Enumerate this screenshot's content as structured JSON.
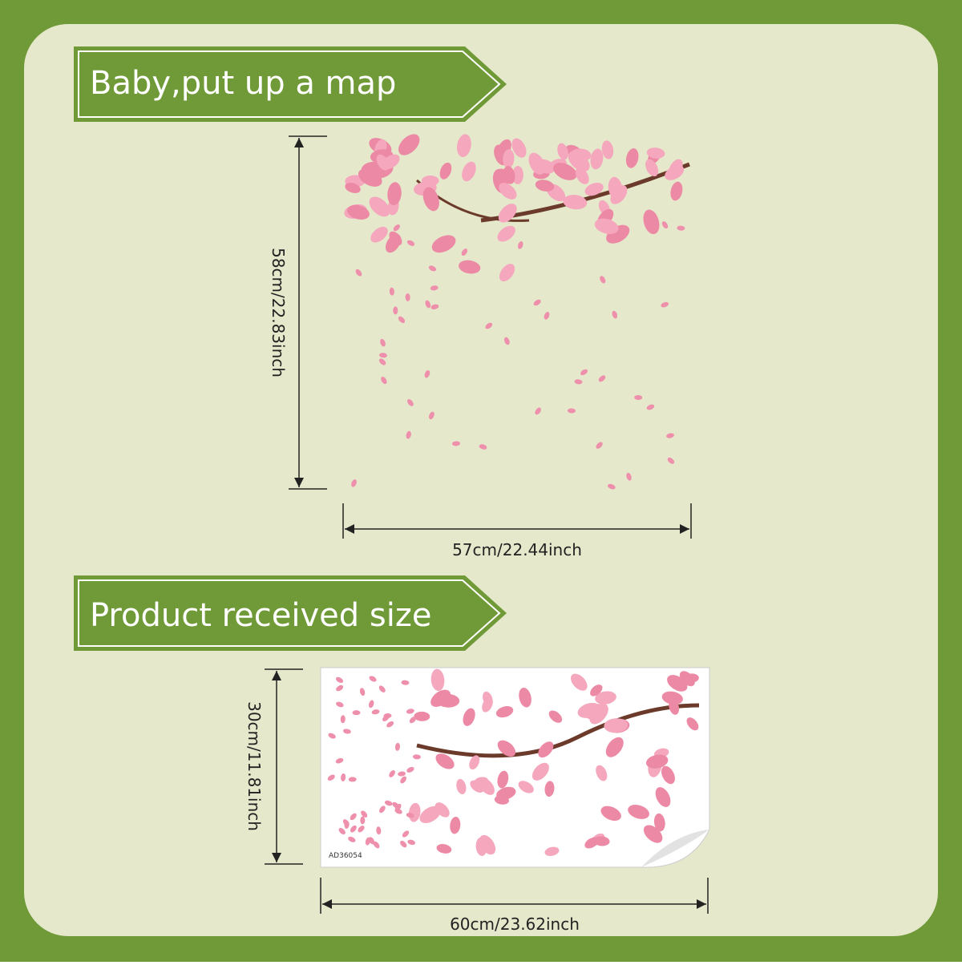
{
  "sections": [
    {
      "title": "Baby,put up a map",
      "height": "58cm/22.83inch",
      "width": "57cm/22.44inch"
    },
    {
      "title": "Product received size",
      "height": "30cm/11.81inch",
      "width": "60cm/23.62inch",
      "code": "AD36054"
    }
  ]
}
